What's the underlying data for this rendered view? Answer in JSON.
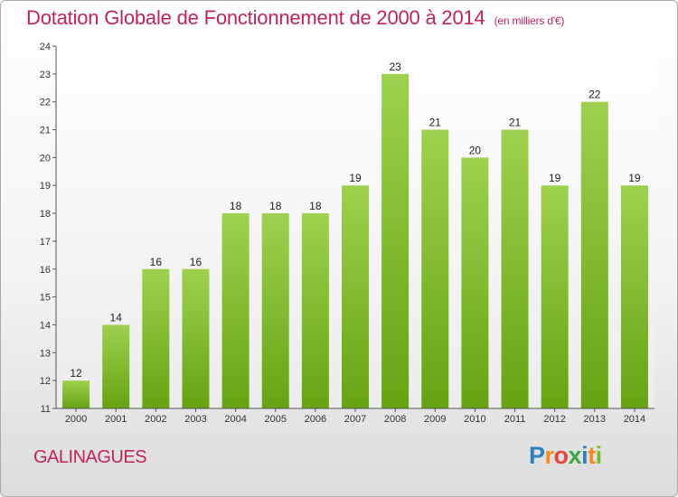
{
  "header": {
    "title": "Dotation Globale de Fonctionnement de 2000 à 2014",
    "subtitle": "(en milliers d'€)"
  },
  "footer": {
    "commune": "GALINAGUES",
    "logo_letters": [
      "P",
      "r",
      "o",
      "x",
      "i",
      "t",
      "i"
    ],
    "logo_colors": [
      "#2f7fc1",
      "#f28c1c",
      "#e8463c",
      "#3aa845",
      "#2f7fc1",
      "#f28c1c",
      "#7ab82e"
    ]
  },
  "chart_data": {
    "type": "bar",
    "categories": [
      "2000",
      "2001",
      "2002",
      "2003",
      "2004",
      "2005",
      "2006",
      "2007",
      "2008",
      "2009",
      "2010",
      "2011",
      "2012",
      "2013",
      "2014"
    ],
    "values": [
      12,
      14,
      16,
      16,
      18,
      18,
      18,
      19,
      23,
      21,
      20,
      21,
      19,
      22,
      19
    ],
    "ylim": [
      11,
      24
    ],
    "yticks": [
      11,
      12,
      13,
      14,
      15,
      16,
      17,
      18,
      19,
      20,
      21,
      22,
      23,
      24
    ],
    "grid": false,
    "legend": "none",
    "bar_color_top": "#9ed14f",
    "bar_color_bottom": "#66a312"
  }
}
